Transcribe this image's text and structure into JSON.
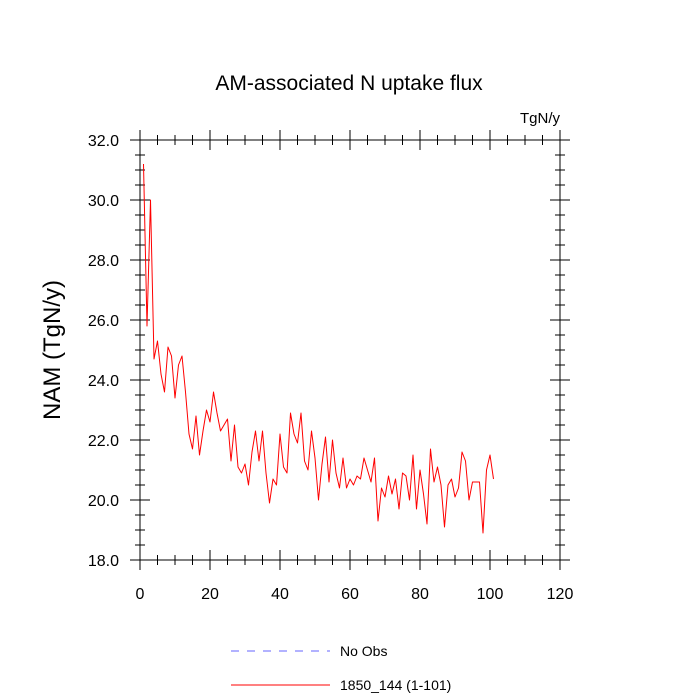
{
  "chart_data": {
    "type": "line",
    "title": "AM-associated N uptake flux",
    "units": "TgN/y",
    "xlabel": "",
    "ylabel": "NAM  (TgN/y)",
    "xlim": [
      0,
      120
    ],
    "ylim": [
      18.0,
      32.0
    ],
    "xticks": [
      0,
      20,
      40,
      60,
      80,
      100,
      120
    ],
    "xtick_labels": [
      "0",
      "20",
      "40",
      "60",
      "80",
      "100",
      "120"
    ],
    "yticks": [
      18.0,
      20.0,
      22.0,
      24.0,
      26.0,
      28.0,
      30.0,
      32.0
    ],
    "ytick_labels": [
      "18.0",
      "20.0",
      "22.0",
      "24.0",
      "26.0",
      "28.0",
      "30.0",
      "32.0"
    ],
    "legend": [
      {
        "name": "No Obs",
        "color": "#6666ff",
        "style": "dashed"
      },
      {
        "name": "1850_144 (1-101)",
        "color": "#ff0000",
        "style": "solid"
      }
    ],
    "series": [
      {
        "name": "1850_144 (1-101)",
        "color": "#ff0000",
        "x": [
          1,
          2,
          3,
          4,
          5,
          6,
          7,
          8,
          9,
          10,
          11,
          12,
          13,
          14,
          15,
          16,
          17,
          18,
          19,
          20,
          21,
          22,
          23,
          24,
          25,
          26,
          27,
          28,
          29,
          30,
          31,
          32,
          33,
          34,
          35,
          36,
          37,
          38,
          39,
          40,
          41,
          42,
          43,
          44,
          45,
          46,
          47,
          48,
          49,
          50,
          51,
          52,
          53,
          54,
          55,
          56,
          57,
          58,
          59,
          60,
          61,
          62,
          63,
          64,
          65,
          66,
          67,
          68,
          69,
          70,
          71,
          72,
          73,
          74,
          75,
          76,
          77,
          78,
          79,
          80,
          81,
          82,
          83,
          84,
          85,
          86,
          87,
          88,
          89,
          90,
          91,
          92,
          93,
          94,
          95,
          96,
          97,
          98,
          99,
          100,
          101
        ],
        "values": [
          31.2,
          25.8,
          30.0,
          24.7,
          25.3,
          24.2,
          23.6,
          25.1,
          24.8,
          23.4,
          24.5,
          24.8,
          23.6,
          22.2,
          21.7,
          22.8,
          21.5,
          22.3,
          23.0,
          22.6,
          23.6,
          22.9,
          22.3,
          22.5,
          22.7,
          21.3,
          22.5,
          21.1,
          20.9,
          21.2,
          20.5,
          21.6,
          22.3,
          21.3,
          22.3,
          20.9,
          19.9,
          20.7,
          20.5,
          22.2,
          21.1,
          20.9,
          22.9,
          22.2,
          21.9,
          22.9,
          21.3,
          21.0,
          22.3,
          21.4,
          20.0,
          21.2,
          22.1,
          20.6,
          22.0,
          20.9,
          20.4,
          21.4,
          20.4,
          20.7,
          20.5,
          20.8,
          20.7,
          21.4,
          21.0,
          20.6,
          21.4,
          19.3,
          20.4,
          20.1,
          20.8,
          20.2,
          20.7,
          19.7,
          20.9,
          20.8,
          20.0,
          21.5,
          19.7,
          21.0,
          20.2,
          19.2,
          21.7,
          20.6,
          21.1,
          20.5,
          19.1,
          20.5,
          20.7,
          20.1,
          20.4,
          21.6,
          21.3,
          20.0,
          20.6,
          20.6,
          20.6,
          18.9,
          21.0,
          21.5,
          20.7
        ]
      }
    ]
  }
}
